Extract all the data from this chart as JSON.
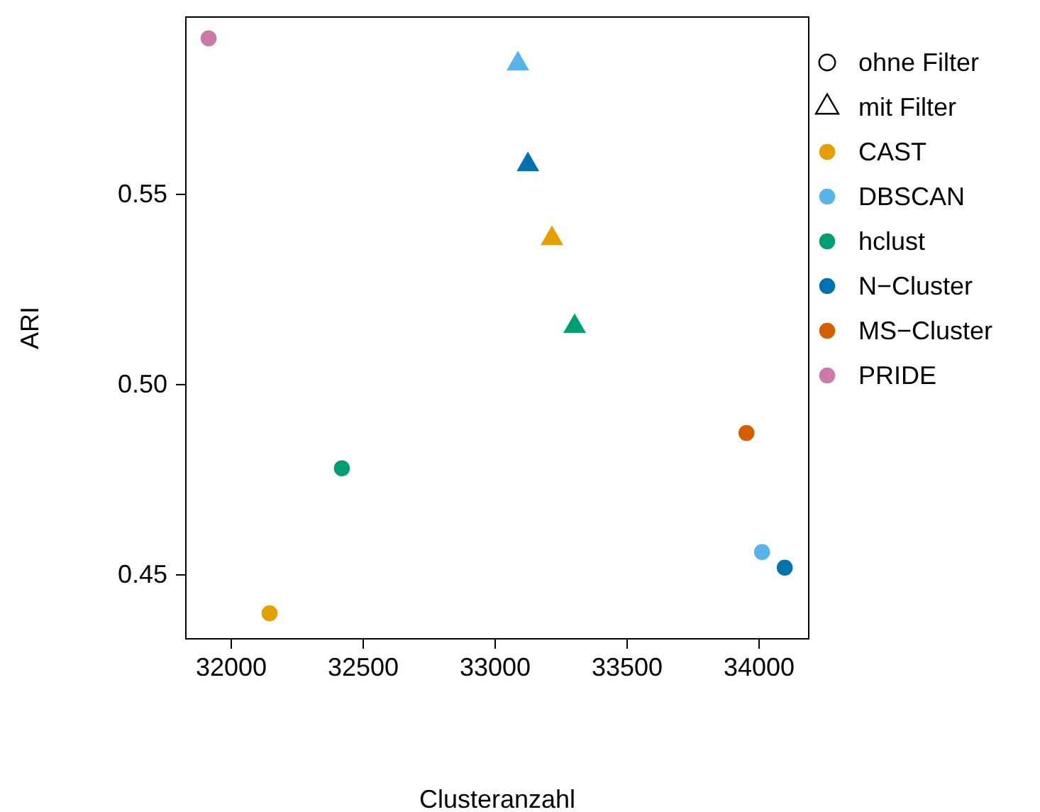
{
  "chart_data": {
    "type": "scatter",
    "xlabel": "Clusteranzahl",
    "ylabel": "ARI",
    "xlim": [
      31828,
      34188
    ],
    "ylim": [
      0.4332,
      0.5966
    ],
    "xticks": [
      32000,
      32500,
      33000,
      33500,
      34000
    ],
    "yticks": [
      {
        "value": 0.45,
        "label": "0.45"
      },
      {
        "value": 0.5,
        "label": "0.50"
      },
      {
        "value": 0.55,
        "label": "0.55"
      }
    ],
    "legend": "right",
    "grid": false,
    "series": [
      {
        "name": "ohne Filter",
        "color": "#000000",
        "marker": "circle"
      },
      {
        "name": "mit Filter",
        "color": "#000000",
        "marker": "triangle"
      },
      {
        "name": "CAST",
        "color": "#e69f00",
        "marker": [
          "circle",
          "triangle"
        ],
        "x": [
          32145,
          33215
        ],
        "values": [
          0.4399,
          0.5384
        ]
      },
      {
        "name": "DBSCAN",
        "color": "#56b4e9",
        "marker": [
          "circle",
          "triangle"
        ],
        "x": [
          34011,
          33086
        ],
        "values": [
          0.456,
          0.5843
        ]
      },
      {
        "name": "hclust",
        "color": "#009e73",
        "marker": [
          "circle",
          "triangle"
        ],
        "x": [
          32419,
          33301
        ],
        "values": [
          0.478,
          0.5153
        ]
      },
      {
        "name": "N−Cluster",
        "color": "#0072b2",
        "marker": [
          "circle",
          "triangle"
        ],
        "x": [
          34097,
          33124
        ],
        "values": [
          0.4519,
          0.5578
        ]
      },
      {
        "name": "MS−Cluster",
        "color": "#d55e00",
        "marker": [
          "circle"
        ],
        "x": [
          33952
        ],
        "values": [
          0.4873
        ]
      },
      {
        "name": "PRIDE",
        "color": "#cc79a7",
        "marker": [
          "circle"
        ],
        "x": [
          31914
        ],
        "values": [
          0.591
        ]
      }
    ]
  }
}
